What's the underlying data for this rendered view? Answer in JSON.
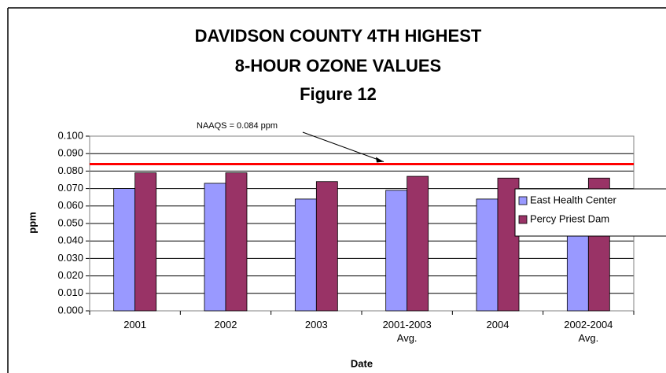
{
  "chart_data": {
    "type": "bar",
    "title": [
      "DAVIDSON COUNTY 4TH HIGHEST",
      "8-HOUR OZONE VALUES"
    ],
    "subtitle": "Figure 12",
    "y_label": "ppm",
    "x_label": "Date",
    "categories": [
      "2001",
      "2002",
      "2003",
      "2001-2003 Avg.",
      "2004",
      "2002-2004 Avg."
    ],
    "series": [
      {
        "name": "East Health Center",
        "color": "#9999ff",
        "values": [
          0.07,
          0.073,
          0.064,
          0.069,
          0.064,
          0.067
        ]
      },
      {
        "name": "Percy Priest Dam",
        "color": "#993366",
        "values": [
          0.079,
          0.079,
          0.074,
          0.077,
          0.076,
          0.076
        ]
      }
    ],
    "ylim": [
      0,
      0.1
    ],
    "yticks": [
      {
        "value": 0,
        "label": "0.000"
      },
      {
        "value": 0.01,
        "label": "0.010"
      },
      {
        "value": 0.02,
        "label": "0.020"
      },
      {
        "value": 0.03,
        "label": "0.030"
      },
      {
        "value": 0.04,
        "label": "0.040"
      },
      {
        "value": 0.05,
        "label": "0.050"
      },
      {
        "value": 0.06,
        "label": "0.060"
      },
      {
        "value": 0.07,
        "label": "0.070"
      },
      {
        "value": 0.08,
        "label": "0.080"
      },
      {
        "value": 0.09,
        "label": "0.090"
      },
      {
        "value": 0.1,
        "label": "0.100"
      }
    ],
    "grid": true,
    "reference_lines": [
      {
        "value": 0.084,
        "color": "#ff0000",
        "label": "NAAQS = 0.084 ppm"
      }
    ],
    "legend": "right"
  }
}
